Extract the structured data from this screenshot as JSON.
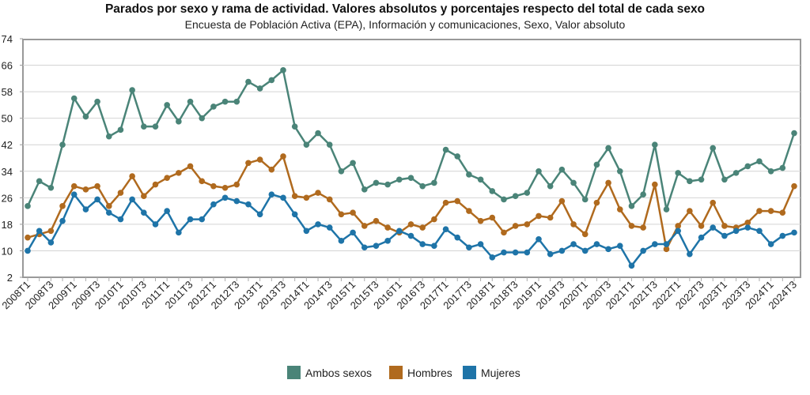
{
  "chart_data": {
    "type": "line",
    "title": "Parados por sexo y rama de actividad. Valores absolutos y porcentajes respecto del total de cada sexo",
    "subtitle": "Encuesta de Población Activa (EPA), Información y comunicaciones, Sexo, Valor absoluto",
    "xlabel": "",
    "ylabel": "",
    "ylim": [
      2,
      74
    ],
    "yticks": [
      2,
      10,
      18,
      26,
      34,
      42,
      50,
      58,
      66,
      74
    ],
    "grid": true,
    "legend_position": "bottom",
    "x": [
      "2008T1",
      "2008T2",
      "2008T3",
      "2008T4",
      "2009T1",
      "2009T2",
      "2009T3",
      "2009T4",
      "2010T1",
      "2010T2",
      "2010T3",
      "2010T4",
      "2011T1",
      "2011T2",
      "2011T3",
      "2011T4",
      "2012T1",
      "2012T2",
      "2012T3",
      "2012T4",
      "2013T1",
      "2013T2",
      "2013T3",
      "2013T4",
      "2014T1",
      "2014T2",
      "2014T3",
      "2014T4",
      "2015T1",
      "2015T2",
      "2015T3",
      "2015T4",
      "2016T1",
      "2016T2",
      "2016T3",
      "2016T4",
      "2017T1",
      "2017T2",
      "2017T3",
      "2017T4",
      "2018T1",
      "2018T2",
      "2018T3",
      "2018T4",
      "2019T1",
      "2019T2",
      "2019T3",
      "2019T4",
      "2020T1",
      "2020T2",
      "2020T3",
      "2020T4",
      "2021T1",
      "2021T2",
      "2021T3",
      "2021T4",
      "2022T1",
      "2022T2",
      "2022T3",
      "2022T4",
      "2023T1",
      "2023T2",
      "2023T3",
      "2023T4",
      "2024T1",
      "2024T2",
      "2024T3"
    ],
    "series": [
      {
        "name": "Ambos sexos",
        "color": "#4a8478",
        "values": [
          23.5,
          31,
          29,
          42,
          56,
          50.5,
          55,
          44.5,
          46.5,
          58.5,
          47.5,
          47.5,
          54,
          49,
          55,
          50,
          53.5,
          55,
          55,
          61,
          59,
          61.5,
          64.5,
          47.5,
          42,
          45.5,
          42,
          34,
          36.5,
          28.5,
          30.5,
          30,
          31.5,
          32,
          29.5,
          30.5,
          40.5,
          38.5,
          33,
          31.5,
          28,
          25.5,
          26.5,
          27.5,
          34,
          29.5,
          34.5,
          30.5,
          25.5,
          36,
          41,
          34,
          23.5,
          27,
          42,
          22.5,
          33.5,
          31,
          31.5,
          41,
          31.5,
          33.5,
          35.5,
          37,
          34,
          35,
          45.5
        ]
      },
      {
        "name": "Hombres",
        "color": "#b06a1e",
        "values": [
          14,
          15,
          16,
          23.5,
          29.5,
          28.5,
          29.5,
          23.5,
          27.5,
          32.5,
          26.5,
          30,
          32,
          33.5,
          35.5,
          31,
          29.5,
          29,
          30,
          36.5,
          37.5,
          34.5,
          38.5,
          26.5,
          26,
          27.5,
          25.5,
          21,
          21.5,
          17.5,
          19,
          17,
          15.5,
          18,
          17,
          19.5,
          24.5,
          25,
          22,
          19,
          20,
          15.5,
          17.5,
          18,
          20.5,
          20,
          25,
          18,
          15,
          24.5,
          30.5,
          22.5,
          17.5,
          17,
          30,
          10.5,
          17.5,
          22,
          17.5,
          24.5,
          17.5,
          17,
          18.5,
          22,
          22,
          21.5,
          29.5
        ]
      },
      {
        "name": "Mujeres",
        "color": "#1e74a8",
        "values": [
          10,
          16,
          12.5,
          19,
          27,
          22.5,
          25.5,
          21.5,
          19.5,
          25.5,
          21.5,
          18,
          22,
          15.5,
          19.5,
          19.5,
          24,
          26,
          25,
          24,
          21,
          27,
          26,
          21,
          16,
          18,
          17,
          13,
          15.5,
          11,
          11.5,
          13,
          16,
          14.5,
          12,
          11.5,
          16.5,
          14,
          11,
          12,
          8,
          9.5,
          9.5,
          9.5,
          13.5,
          9,
          10,
          12,
          10,
          12,
          10.5,
          11.5,
          5.5,
          10,
          12,
          12,
          16,
          9,
          14,
          17,
          14.5,
          16,
          17,
          16,
          12,
          14.5,
          15.5
        ]
      }
    ]
  }
}
